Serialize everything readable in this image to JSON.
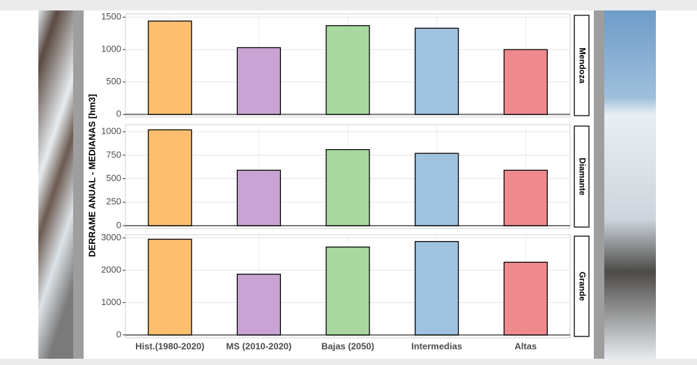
{
  "chart_data": {
    "type": "bar",
    "y_label": "DERRAME ANUAL - MEDIANAS [hm3]",
    "categories": [
      "Hist.(1980-2020)",
      "MS (2010-2020)",
      "Bajas (2050)",
      "Intermedias",
      "Altas"
    ],
    "colors": [
      "#fdbf6f",
      "#c9a3d4",
      "#a8d8a0",
      "#9fc2df",
      "#ee8a8e"
    ],
    "grid": true,
    "panels": [
      {
        "name": "Mendoza",
        "values": [
          1440,
          1030,
          1370,
          1330,
          1000
        ],
        "ylim": [
          -40,
          1550
        ],
        "yticks": [
          0,
          500,
          1000,
          1500
        ]
      },
      {
        "name": "Diamante",
        "values": [
          1020,
          590,
          810,
          770,
          590
        ],
        "ylim": [
          -30,
          1075
        ],
        "yticks": [
          0,
          250,
          500,
          750,
          1000
        ]
      },
      {
        "name": "Grande",
        "values": [
          2960,
          1880,
          2720,
          2890,
          2250
        ],
        "ylim": [
          -90,
          3100
        ],
        "yticks": [
          0,
          1000,
          2000,
          3000
        ]
      }
    ]
  }
}
